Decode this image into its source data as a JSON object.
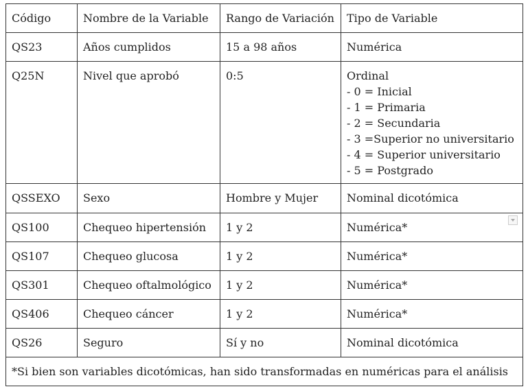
{
  "table": {
    "headers": [
      "Código",
      "Nombre de la Variable",
      "Rango de Variación",
      "Tipo de Variable"
    ],
    "rows": [
      {
        "code": "QS23",
        "name": "Años cumplidos",
        "range": "15 a 98 años",
        "type": "Numérica"
      },
      {
        "code": "Q25N",
        "name": "Nivel que aprobó",
        "range": "0:5",
        "type": "Ordinal",
        "options": [
          "- 0 = Inicial",
          "- 1 = Primaria",
          "- 2 = Secundaria",
          "- 3 =Superior no universitario",
          "- 4 = Superior universitario",
          "- 5 = Postgrado"
        ]
      },
      {
        "code": "QSSEXO",
        "name": "Sexo",
        "range": "Hombre y Mujer",
        "type": "Nominal dicotómica"
      },
      {
        "code": "QS100",
        "name": "Chequeo hipertensión",
        "range": "1 y 2",
        "type": "Numérica*"
      },
      {
        "code": "QS107",
        "name": "Chequeo glucosa",
        "range": "1 y 2",
        "type": "Numérica*"
      },
      {
        "code": "QS301",
        "name": "Chequeo oftalmológico",
        "range": "1 y 2",
        "type": "Numérica*"
      },
      {
        "code": "QS406",
        "name": "Chequeo cáncer",
        "range": "1 y 2",
        "type": "Numérica*"
      },
      {
        "code": "QS26",
        "name": "Seguro",
        "range": "Sí y no",
        "type": "Nominal dicotómica"
      }
    ],
    "footnote": "*Si bien son variables dicotómicas, han sido transformadas en numéricas para el análisis"
  }
}
